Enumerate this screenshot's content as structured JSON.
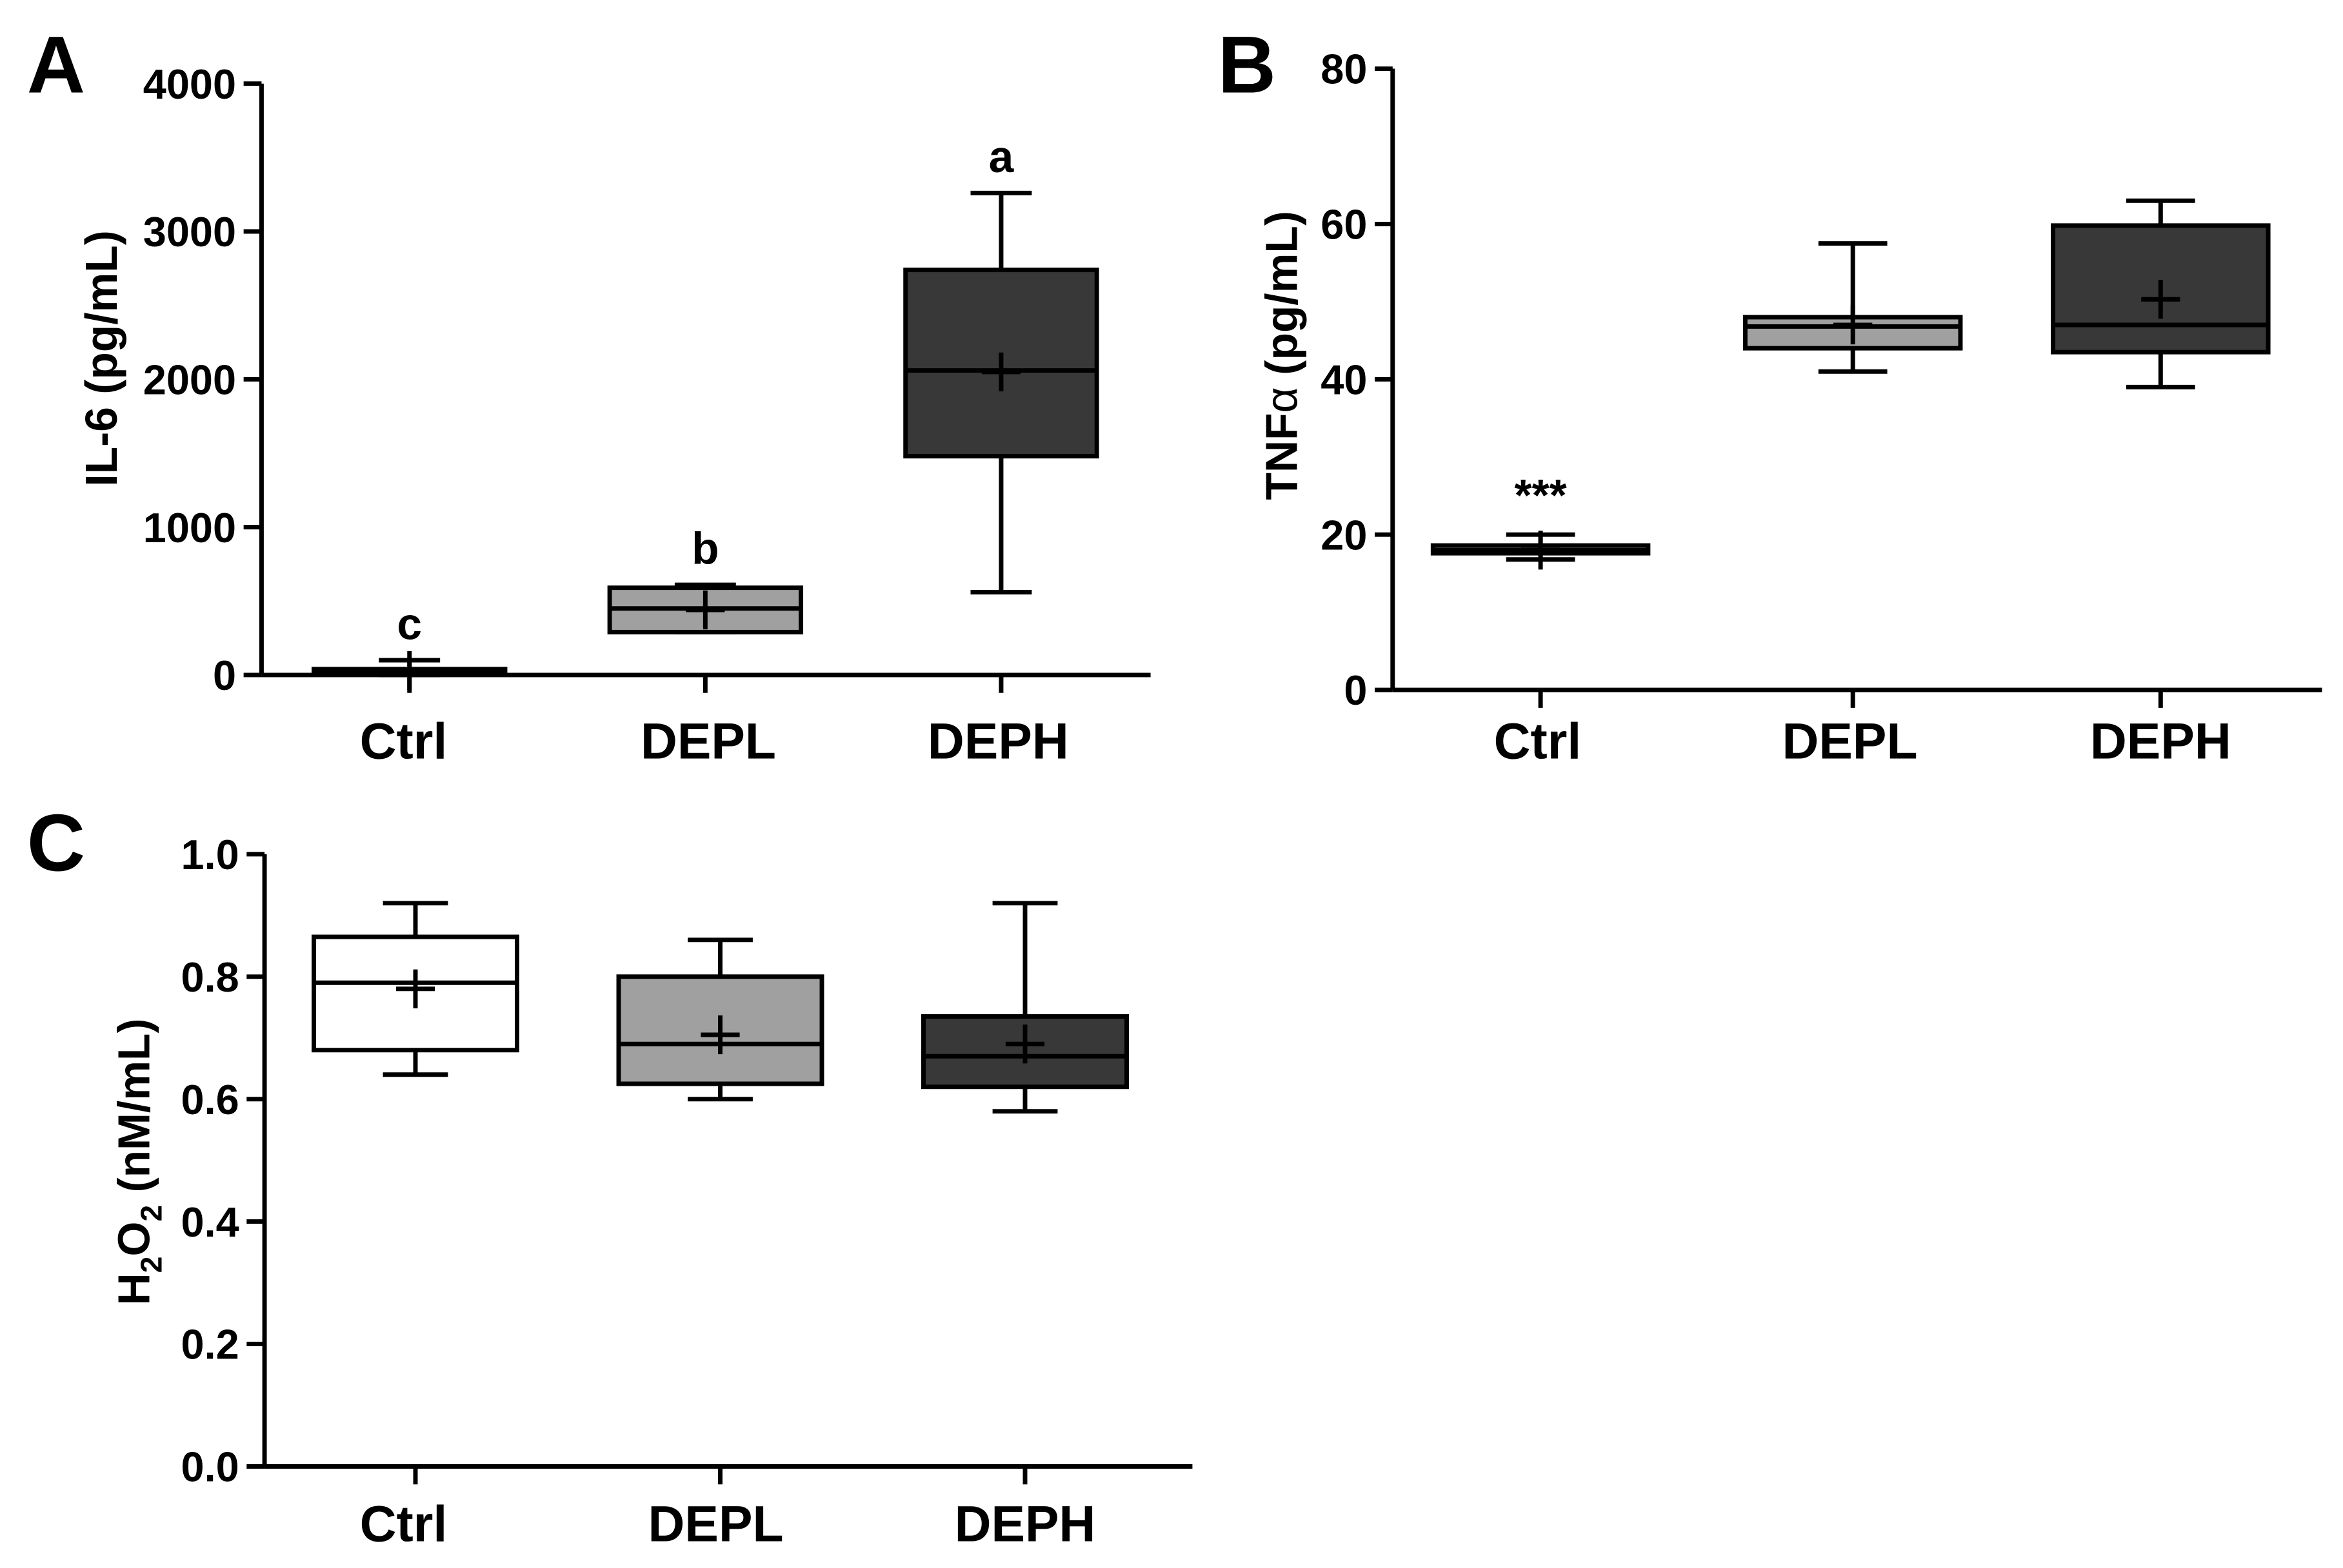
{
  "colors": {
    "axis": "#000000",
    "ctrl": "#ffffff",
    "depl": "#a0a0a0",
    "deph": "#383838"
  },
  "chart_data": [
    {
      "panel": "A",
      "type": "box",
      "ylabel": "IL-6 (pg/mL)",
      "ylim": [
        0,
        4000
      ],
      "yticks": [
        0,
        1000,
        2000,
        3000,
        4000
      ],
      "categories": [
        "Ctrl",
        "DEPL",
        "DEPH"
      ],
      "boxes": [
        {
          "category": "Ctrl",
          "min": 0,
          "q1": 20,
          "median": 30,
          "q3": 40,
          "max": 100,
          "mean": 30,
          "fill": "ctrl",
          "label": "c"
        },
        {
          "category": "DEPL",
          "min": 290,
          "q1": 290,
          "median": 450,
          "q3": 590,
          "max": 610,
          "mean": 440,
          "fill": "depl",
          "label": "b"
        },
        {
          "category": "DEPH",
          "min": 560,
          "q1": 1480,
          "median": 2060,
          "q3": 2740,
          "max": 3260,
          "mean": 2050,
          "fill": "deph",
          "label": "a"
        }
      ]
    },
    {
      "panel": "B",
      "type": "box",
      "ylabel": "TNF",
      "ylabel_symbol": "α",
      "ylabel_unit": "(pg/mL)",
      "ylim": [
        0,
        80
      ],
      "yticks": [
        0,
        20,
        40,
        60,
        80
      ],
      "categories": [
        "Ctrl",
        "DEPL",
        "DEPH"
      ],
      "boxes": [
        {
          "category": "Ctrl",
          "min": 16.8,
          "q1": 17.6,
          "median": 18,
          "q3": 18.6,
          "max": 20,
          "mean": 18,
          "fill": "ctrl",
          "label": "***"
        },
        {
          "category": "DEPL",
          "min": 41,
          "q1": 44,
          "median": 46.8,
          "q3": 48,
          "max": 57.5,
          "mean": 47,
          "fill": "depl",
          "label": ""
        },
        {
          "category": "DEPH",
          "min": 39,
          "q1": 43.5,
          "median": 47,
          "q3": 59.8,
          "max": 63,
          "mean": 50.3,
          "fill": "deph",
          "label": ""
        }
      ]
    },
    {
      "panel": "C",
      "type": "box",
      "ylabel_parts": [
        "H",
        "2",
        "O",
        "2",
        " (nM/mL)"
      ],
      "ylim": [
        0,
        1.0
      ],
      "yticks": [
        "0.0",
        "0.2",
        "0.4",
        "0.6",
        "0.8",
        "1.0"
      ],
      "categories": [
        "Ctrl",
        "DEPL",
        "DEPH"
      ],
      "boxes": [
        {
          "category": "Ctrl",
          "min": 0.64,
          "q1": 0.68,
          "median": 0.79,
          "q3": 0.865,
          "max": 0.92,
          "mean": 0.78,
          "fill": "ctrl",
          "label": ""
        },
        {
          "category": "DEPL",
          "min": 0.6,
          "q1": 0.625,
          "median": 0.69,
          "q3": 0.8,
          "max": 0.86,
          "mean": 0.705,
          "fill": "depl",
          "label": ""
        },
        {
          "category": "DEPH",
          "min": 0.58,
          "q1": 0.62,
          "median": 0.67,
          "q3": 0.735,
          "max": 0.92,
          "mean": 0.69,
          "fill": "deph",
          "label": ""
        }
      ]
    }
  ]
}
